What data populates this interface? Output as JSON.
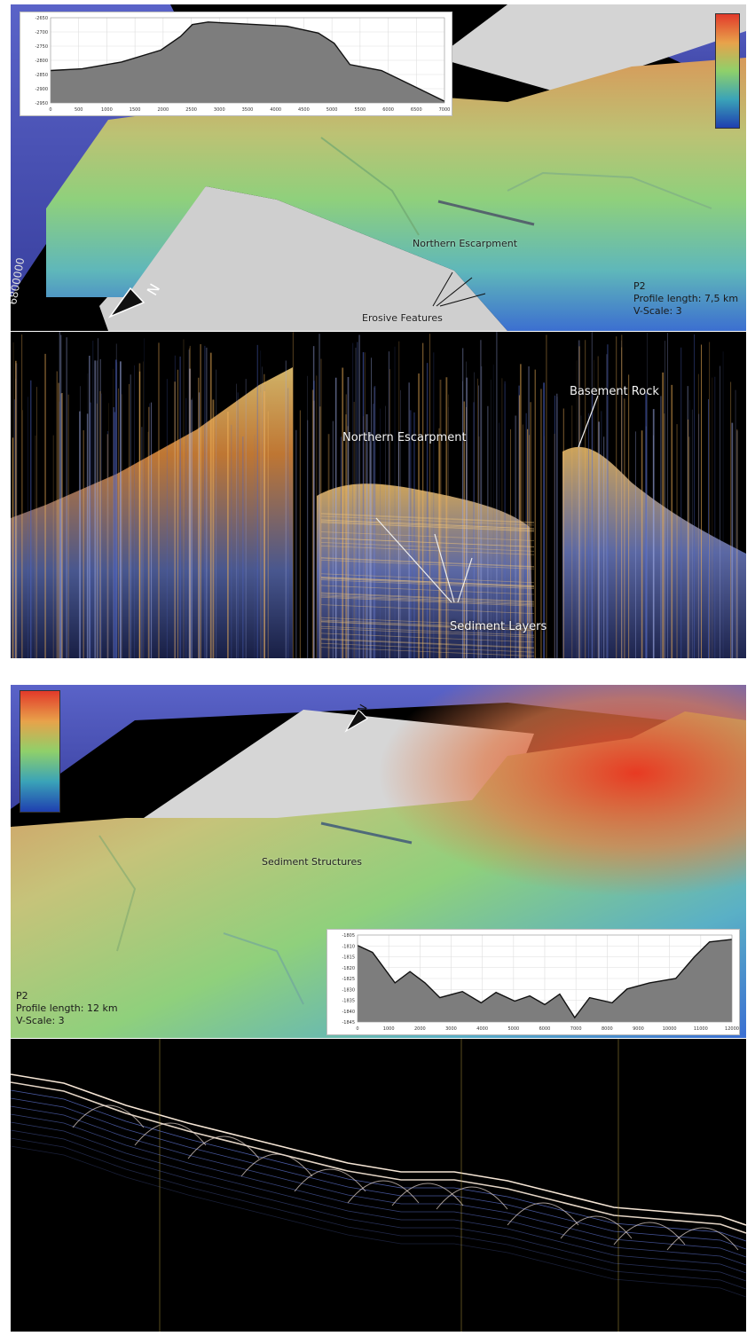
{
  "panel_a": {
    "map": {
      "label_escarpment": "Northern Escarpment",
      "label_erosive": "Erosive Features",
      "grid_label": "6800000",
      "info": {
        "profile": "P2",
        "length": "Profile length: 7,5 km",
        "vscale": "V-Scale: 3"
      }
    },
    "profile_inset": {
      "y_ticks": [
        "-2650",
        "-2700",
        "-2750",
        "-2800",
        "-2850",
        "-2900",
        "-2950"
      ],
      "x_ticks": [
        "0",
        "500",
        "1000",
        "1500",
        "2000",
        "2500",
        "3000",
        "3500",
        "4000",
        "4500",
        "5000",
        "5500",
        "6000",
        "6500",
        "7000"
      ]
    },
    "seismic": {
      "label_basement": "Basement Rock",
      "label_escarpment": "Northern Escarpment",
      "label_sediment": "Sediment Layers"
    }
  },
  "panel_b": {
    "map": {
      "label_sediment_structures": "Sediment Structures",
      "info": {
        "profile": "P2",
        "length": "Profile length: 12 km",
        "vscale": "V-Scale: 3"
      }
    },
    "profile_inset": {
      "y_ticks": [
        "-1805",
        "-1810",
        "-1815",
        "-1820",
        "-1825",
        "-1830",
        "-1835",
        "-1840",
        "-1845"
      ],
      "x_ticks": [
        "0",
        "1000",
        "2000",
        "3000",
        "4000",
        "5000",
        "6000",
        "7000",
        "8000",
        "9000",
        "10000",
        "11000",
        "12000"
      ]
    }
  },
  "colors": {
    "colorbar": [
      "#e23a2a",
      "#e8a24a",
      "#8fd06a",
      "#3aa3b8",
      "#1f3fb0"
    ]
  }
}
